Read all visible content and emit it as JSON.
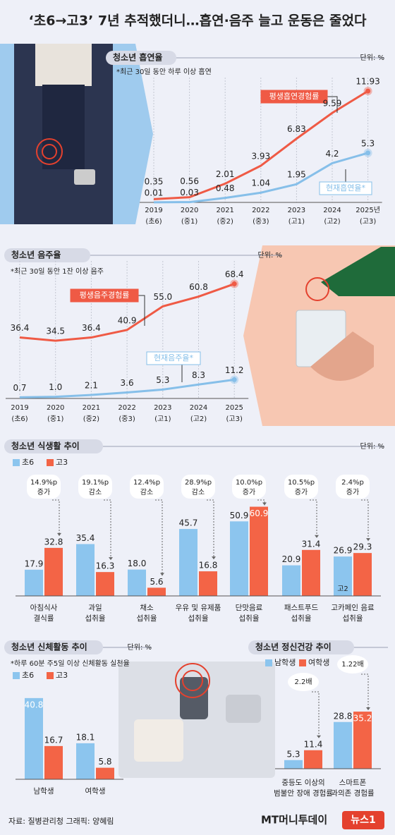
{
  "header": {
    "title": "‘초6→고3’ 7년 추적했더니…흡연·음주 늘고 운동은 줄었다"
  },
  "chart_data": [
    {
      "type": "line",
      "title": "청소년 흡연율",
      "unit": "단위: %",
      "note": "*최근 30일 동안 하루 이상 흡연",
      "categories": [
        "2019\n(초6)",
        "2020\n(중1)",
        "2021\n(중2)",
        "2022\n(중3)",
        "2023\n(고1)",
        "2024\n(고2)",
        "2025년\n(고3)"
      ],
      "series": [
        {
          "name": "평생흡연경험률",
          "color": "#ef5a45",
          "values": [
            0.35,
            0.56,
            2.01,
            3.93,
            6.83,
            9.59,
            11.93
          ]
        },
        {
          "name": "현재흡연율*",
          "color": "#86bfe9",
          "values": [
            0.01,
            0.03,
            0.48,
            1.04,
            1.95,
            4.2,
            5.3
          ]
        }
      ],
      "ylim": [
        0,
        13
      ]
    },
    {
      "type": "line",
      "title": "청소년 음주율",
      "unit": "단위: %",
      "note": "*최근 30일 동안 1잔 이상 음주",
      "categories": [
        "2019\n(초6)",
        "2020\n(중1)",
        "2021\n(중2)",
        "2022\n(중3)",
        "2023\n(고1)",
        "2024\n(고2)",
        "2025\n(고3)"
      ],
      "series": [
        {
          "name": "평생음주경험률",
          "color": "#ef5a45",
          "values": [
            36.4,
            34.5,
            36.4,
            40.9,
            55,
            60.8,
            68.4
          ],
          "value_labels": [
            "36.4",
            "34.5",
            "36.4",
            "40.9",
            "55.0",
            "60.8",
            "68.4"
          ]
        },
        {
          "name": "현재음주율*",
          "color": "#86bfe9",
          "values": [
            0.7,
            1,
            2.1,
            3.6,
            5.3,
            8.3,
            11.2
          ],
          "value_labels": [
            "0.7",
            "1.0",
            "2.1",
            "3.6",
            "5.3",
            "8.3",
            "11.2"
          ]
        }
      ],
      "ylim": [
        0,
        80
      ]
    },
    {
      "type": "bar",
      "title": "청소년 식생활 추이",
      "unit": "단위: %",
      "categories": [
        "아침식사\n결식률",
        "과일\n섭취율",
        "채소\n섭취율",
        "우유 및 유제품\n섭취율",
        "단맛음료\n섭취율",
        "패스트푸드\n섭취율",
        "고카페인 음료\n섭취율"
      ],
      "series": [
        {
          "name": "초6",
          "color": "#8cc5ee",
          "values": [
            17.9,
            35.4,
            18,
            45.7,
            50.9,
            20.9,
            26.9
          ],
          "value_labels": [
            "17.9",
            "35.4",
            "18.0",
            "45.7",
            "50.9",
            "20.9",
            "26.9"
          ]
        },
        {
          "name": "고3",
          "color": "#f36446",
          "values": [
            32.8,
            16.3,
            5.6,
            16.8,
            60.9,
            31.4,
            29.3
          ]
        }
      ],
      "annotations": [
        "14.9%p\n증가",
        "19.1%p\n감소",
        "12.4%p\n감소",
        "28.9%p\n감소",
        "10.0%p\n증가",
        "10.5%p\n증가",
        "2.4%p\n증가"
      ],
      "bar_note": "고2",
      "ylim": [
        0,
        65
      ]
    },
    {
      "type": "bar",
      "title": "청소년 신체활동 추이",
      "unit": "단위: %",
      "note": "*하루 60분 주5일 이상 신체활동 실천율",
      "categories": [
        "남학생",
        "여학생"
      ],
      "series": [
        {
          "name": "초6",
          "color": "#8cc5ee",
          "values": [
            40.8,
            18.1
          ]
        },
        {
          "name": "고3",
          "color": "#f36446",
          "values": [
            16.7,
            5.8
          ]
        }
      ],
      "ylim": [
        0,
        45
      ]
    },
    {
      "type": "bar",
      "title": "청소년 정신건강 추이",
      "categories": [
        "중등도 이상의\n범불안 장애 경험률",
        "스마트폰\n과의존 경험률"
      ],
      "series": [
        {
          "name": "남학생",
          "color": "#8cc5ee",
          "values": [
            5.3,
            28.8
          ]
        },
        {
          "name": "여학생",
          "color": "#f36446",
          "values": [
            11.4,
            35.2
          ]
        }
      ],
      "annotations": [
        "2.2배",
        "1.22배"
      ],
      "ylim": [
        0,
        40
      ]
    }
  ],
  "footer": {
    "source": "자료: 질병관리청  그래픽: 양혜림",
    "logo": "MT머니투데이",
    "logo2": "뉴스1"
  }
}
